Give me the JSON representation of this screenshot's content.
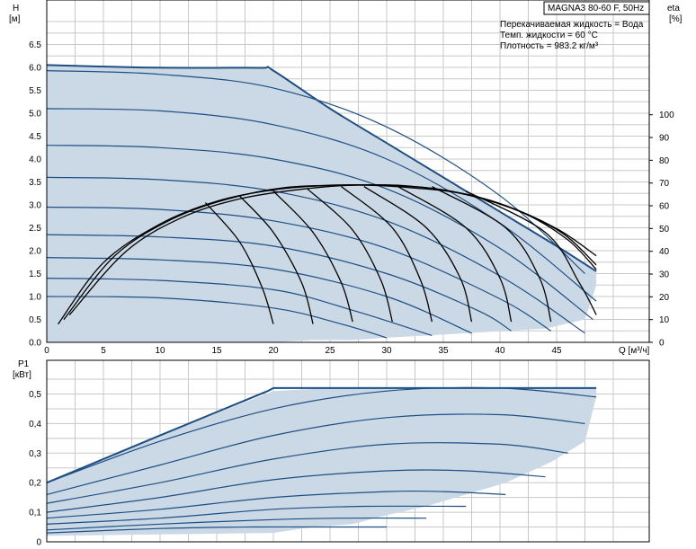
{
  "title": "MAGNA3 80-60 F, 50Hz",
  "info_lines": [
    "Перекачиваемая жидкость = Вода",
    "Темп. жидкости = 60 °C",
    "Плотность = 983.2 кг/м³"
  ],
  "colors": {
    "region_fill": "#cbd8e6",
    "curve": "#1e4f82",
    "efficiency": "#000000",
    "grid": "#c8c8c8"
  },
  "chart_data": [
    {
      "type": "line",
      "name_ref": "head",
      "ylabel": "H",
      "yunit": "[м]",
      "y2label": "eta",
      "y2unit": "[%]",
      "xlabel": "Q [м³/ч]",
      "xlim": [
        0,
        50
      ],
      "ylim": [
        0,
        7
      ],
      "y2lim": [
        0,
        140
      ],
      "x_ticks": [
        0,
        5,
        10,
        15,
        20,
        25,
        30,
        35,
        40,
        45
      ],
      "y_ticks": [
        "0.0",
        "0.5",
        "1.0",
        "1.5",
        "2.0",
        "2.5",
        "3.0",
        "3.5",
        "4.0",
        "4.5",
        "5.0",
        "5.5",
        "6.0",
        "6.5"
      ],
      "y2_ticks": [
        0,
        10,
        20,
        30,
        40,
        50,
        60,
        70,
        80,
        90,
        100
      ],
      "grid": true,
      "region": {
        "x": [
          0,
          8,
          14,
          19,
          20,
          25,
          30,
          35,
          40,
          45,
          48.5,
          48.5,
          47.5,
          44,
          40.5,
          37,
          33.5,
          30,
          27,
          23.5,
          20,
          0
        ],
        "y": [
          6.05,
          6.0,
          5.99,
          5.99,
          5.93,
          5.1,
          4.35,
          3.6,
          2.85,
          2.1,
          1.55,
          1.25,
          0.5,
          0.3,
          0.25,
          0.2,
          0.15,
          0.1,
          0.05,
          0.05,
          0.0,
          0.0
        ]
      },
      "envelope": {
        "x": [
          0,
          8,
          14,
          19,
          20,
          25,
          30,
          35,
          40,
          45,
          48.5
        ],
        "y": [
          6.05,
          6.0,
          5.99,
          5.99,
          5.93,
          5.1,
          4.35,
          3.6,
          2.85,
          2.1,
          1.55
        ]
      },
      "speed_curves": [
        {
          "x": [
            0,
            10,
            20,
            30,
            40,
            47.5
          ],
          "y": [
            5.93,
            5.85,
            5.55,
            4.7,
            3.2,
            1.5
          ]
        },
        {
          "x": [
            0,
            10,
            20,
            30,
            40,
            48.5
          ],
          "y": [
            5.1,
            5.05,
            4.75,
            4.0,
            2.6,
            0.9
          ]
        },
        {
          "x": [
            0,
            10,
            20,
            30,
            40,
            48.2
          ],
          "y": [
            4.3,
            4.25,
            4.0,
            3.35,
            2.05,
            0.5
          ]
        },
        {
          "x": [
            0,
            10,
            20,
            30,
            40,
            47.5
          ],
          "y": [
            3.6,
            3.55,
            3.3,
            2.65,
            1.45,
            0.2
          ]
        },
        {
          "x": [
            0,
            10,
            20,
            30,
            40,
            44.5
          ],
          "y": [
            2.95,
            2.9,
            2.65,
            2.05,
            0.95,
            0.25
          ]
        },
        {
          "x": [
            0,
            10,
            20,
            30,
            38,
            41
          ],
          "y": [
            2.35,
            2.3,
            2.1,
            1.5,
            0.7,
            0.25
          ]
        },
        {
          "x": [
            0,
            10,
            20,
            30,
            37.5
          ],
          "y": [
            1.85,
            1.8,
            1.6,
            1.0,
            0.2
          ]
        },
        {
          "x": [
            0,
            10,
            20,
            27,
            34
          ],
          "y": [
            1.4,
            1.35,
            1.15,
            0.7,
            0.15
          ]
        },
        {
          "x": [
            0,
            10,
            20,
            26,
            30
          ],
          "y": [
            1.0,
            0.97,
            0.75,
            0.4,
            0.1
          ]
        }
      ],
      "efficiency_curves": [
        {
          "x": [
            1,
            5,
            10,
            15,
            20,
            25,
            30,
            35,
            40,
            45,
            48.5
          ],
          "y": [
            8,
            35,
            52,
            62,
            67,
            69,
            69,
            67,
            61,
            50,
            38
          ]
        },
        {
          "x": [
            1.5,
            6,
            11,
            16,
            21,
            26,
            31,
            36,
            41,
            45.5,
            48.5
          ],
          "y": [
            10,
            38,
            54,
            63,
            68,
            69,
            69,
            66,
            59,
            48,
            34
          ]
        },
        {
          "x": [
            2,
            7,
            12,
            17,
            22,
            27,
            32,
            37,
            42,
            46,
            48.5
          ],
          "y": [
            12,
            40,
            55,
            63,
            67,
            69,
            68,
            65,
            57,
            45,
            32
          ]
        }
      ],
      "efficiency_end_curves": [
        {
          "x": [
            14,
            17,
            19,
            20
          ],
          "y": [
            3.05,
            2.2,
            1.2,
            0.4
          ]
        },
        {
          "x": [
            17,
            20,
            22.5,
            23.5
          ],
          "y": [
            3.2,
            2.4,
            1.3,
            0.4
          ]
        },
        {
          "x": [
            20,
            23.5,
            26,
            27
          ],
          "y": [
            3.3,
            2.4,
            1.3,
            0.45
          ]
        },
        {
          "x": [
            23,
            27,
            29.5,
            30.5
          ],
          "y": [
            3.35,
            2.45,
            1.35,
            0.45
          ]
        },
        {
          "x": [
            26,
            30.5,
            33,
            34
          ],
          "y": [
            3.4,
            2.5,
            1.35,
            0.45
          ]
        },
        {
          "x": [
            28,
            33.5,
            36.5,
            37.5
          ],
          "y": [
            3.4,
            2.5,
            1.4,
            0.45
          ]
        },
        {
          "x": [
            31,
            37,
            40,
            41
          ],
          "y": [
            3.4,
            2.5,
            1.4,
            0.45
          ]
        },
        {
          "x": [
            34,
            40.5,
            43.5,
            44.5
          ],
          "y": [
            3.4,
            2.5,
            1.4,
            0.45
          ]
        },
        {
          "x": [
            37,
            44,
            47,
            48.5
          ],
          "y": [
            3.3,
            2.4,
            1.3,
            0.6
          ]
        }
      ]
    },
    {
      "type": "line",
      "name_ref": "power",
      "ylabel": "P1",
      "yunit": "[кВт]",
      "xlim": [
        0,
        50
      ],
      "ylim": [
        0,
        0.55
      ],
      "y_ticks": [
        "0",
        "0,1",
        "0,2",
        "0,3",
        "0,4",
        "0,5"
      ],
      "grid": true,
      "region": {
        "x": [
          0,
          10,
          20,
          25,
          30,
          35,
          40,
          48.5,
          48.5,
          47.5,
          44.5,
          40.5,
          37,
          33.5,
          30,
          27,
          23.5,
          20,
          0
        ],
        "y": [
          0.2,
          0.36,
          0.51,
          0.52,
          0.52,
          0.52,
          0.52,
          0.52,
          0.49,
          0.34,
          0.27,
          0.2,
          0.16,
          0.12,
          0.09,
          0.06,
          0.05,
          0.03,
          0.02
        ]
      },
      "envelope": {
        "x": [
          0,
          10,
          19.5,
          20,
          48.5
        ],
        "y": [
          0.2,
          0.36,
          0.51,
          0.52,
          0.52
        ]
      },
      "speed_curves": [
        {
          "x": [
            0,
            10,
            20,
            30,
            40,
            48.5
          ],
          "y": [
            0.2,
            0.34,
            0.45,
            0.51,
            0.52,
            0.49
          ]
        },
        {
          "x": [
            0,
            10,
            20,
            30,
            40,
            47.5
          ],
          "y": [
            0.16,
            0.26,
            0.36,
            0.42,
            0.43,
            0.4
          ]
        },
        {
          "x": [
            0,
            10,
            20,
            30,
            40,
            46
          ],
          "y": [
            0.13,
            0.2,
            0.28,
            0.33,
            0.33,
            0.3
          ]
        },
        {
          "x": [
            0,
            10,
            20,
            30,
            37,
            44
          ],
          "y": [
            0.1,
            0.15,
            0.21,
            0.24,
            0.24,
            0.22
          ]
        },
        {
          "x": [
            0,
            10,
            20,
            30,
            35,
            40.5
          ],
          "y": [
            0.08,
            0.11,
            0.15,
            0.17,
            0.17,
            0.16
          ]
        },
        {
          "x": [
            0,
            10,
            20,
            28,
            37
          ],
          "y": [
            0.06,
            0.08,
            0.11,
            0.12,
            0.12
          ]
        },
        {
          "x": [
            0,
            10,
            20,
            26,
            33.5
          ],
          "y": [
            0.04,
            0.06,
            0.075,
            0.08,
            0.08
          ]
        },
        {
          "x": [
            0,
            10,
            18,
            23.5,
            30
          ],
          "y": [
            0.03,
            0.045,
            0.05,
            0.05,
            0.05
          ]
        }
      ]
    }
  ]
}
